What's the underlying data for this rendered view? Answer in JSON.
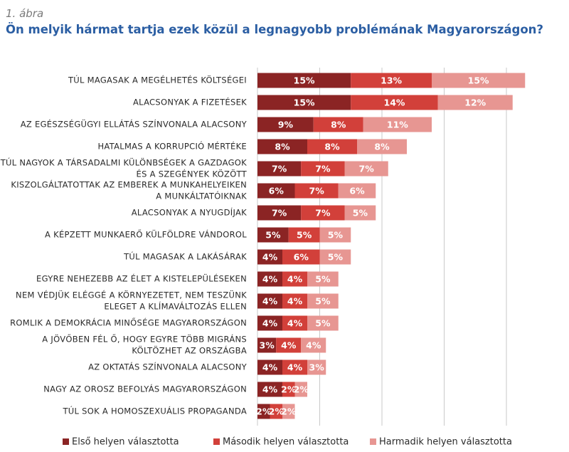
{
  "figure": {
    "label": "1. ábra",
    "title": "Ön melyik hármat tartja ezek közül a legnagyobb problémának Magyarországon?"
  },
  "chart_data": {
    "type": "bar",
    "orientation": "horizontal",
    "stacked": true,
    "xlim": [
      0,
      45
    ],
    "grid": true,
    "legend_position": "bottom",
    "categories": [
      [
        "TÚL MAGASAK A MEGÉLHETÉS KÖLTSÉGEI"
      ],
      [
        "ALACSONYAK A FIZETÉSEK"
      ],
      [
        "AZ EGÉSZSÉGÜGYI ELLÁTÁS SZÍNVONALA ALACSONY"
      ],
      [
        "HATALMAS A KORRUPCIÓ MÉRTÉKE"
      ],
      [
        "TÚL NAGYOK A TÁRSADALMI KÜLÖNBSÉGEK A GAZDAGOK",
        "ÉS A SZEGÉNYEK KÖZÖTT"
      ],
      [
        "KISZOLGÁLTATOTTAK AZ EMBEREK A MUNKAHELYEIKEN",
        "A MUNKÁLTATÓIKNAK"
      ],
      [
        "ALACSONYAK A NYUGDÍJAK"
      ],
      [
        "A KÉPZETT MUNKAERŐ KÜLFÖLDRE VÁNDOROL"
      ],
      [
        "TÚL MAGASAK A LAKÁSÁRAK"
      ],
      [
        "EGYRE NEHEZEBB AZ ÉLET A KISTELEPÜLÉSEKEN"
      ],
      [
        "NEM VÉDJÜK ELÉGGÉ A KÖRNYEZETET, NEM TESZÜNK",
        "ELEGET A KLÍMAVÁLTOZÁS ELLEN"
      ],
      [
        "ROMLIK A DEMOKRÁCIA MINŐSÉGE MAGYARORSZÁGON"
      ],
      [
        "A JÖVŐBEN FÉL Ő, HOGY EGYRE TÖBB MIGRÁNS",
        "KÖLTÖZHET AZ ORSZÁGBA"
      ],
      [
        "AZ OKTATÁS SZÍNVONALA ALACSONY"
      ],
      [
        "NAGY AZ OROSZ BEFOLYÁS MAGYARORSZÁGON"
      ],
      [
        "TÚL SOK A HOMOSZEXUÁLIS PROPAGANDA"
      ]
    ],
    "series": [
      {
        "name": "Első helyen választotta",
        "color": "#8b2424",
        "values": [
          15,
          15,
          9,
          8,
          7,
          6,
          7,
          5,
          4,
          4,
          4,
          4,
          3,
          4,
          4,
          2
        ],
        "labels": [
          "15%",
          "15%",
          "9%",
          "8%",
          "7%",
          "6%",
          "7%",
          "5%",
          "4%",
          "4%",
          "4%",
          "4%",
          "3%",
          "4%",
          "4%",
          "2%"
        ]
      },
      {
        "name": "Második helyen választotta",
        "color": "#d2403a",
        "values": [
          13,
          14,
          8,
          8,
          7,
          7,
          7,
          5,
          6,
          4,
          4,
          4,
          4,
          4,
          2,
          2
        ],
        "labels": [
          "13%",
          "14%",
          "8%",
          "8%",
          "7%",
          "7%",
          "7%",
          "5%",
          "6%",
          "4%",
          "4%",
          "4%",
          "4%",
          "4%",
          "2%",
          "2%"
        ]
      },
      {
        "name": "Harmadik helyen választotta",
        "color": "#e79692",
        "values": [
          15,
          12,
          11,
          8,
          7,
          6,
          5,
          5,
          5,
          5,
          5,
          5,
          4,
          3,
          2,
          2
        ],
        "labels": [
          "15%",
          "12%",
          "11%",
          "8%",
          "7%",
          "6%",
          "5%",
          "5%",
          "5%",
          "5%",
          "5%",
          "5%",
          "4%",
          "3%",
          "2%",
          "2%"
        ]
      }
    ]
  }
}
